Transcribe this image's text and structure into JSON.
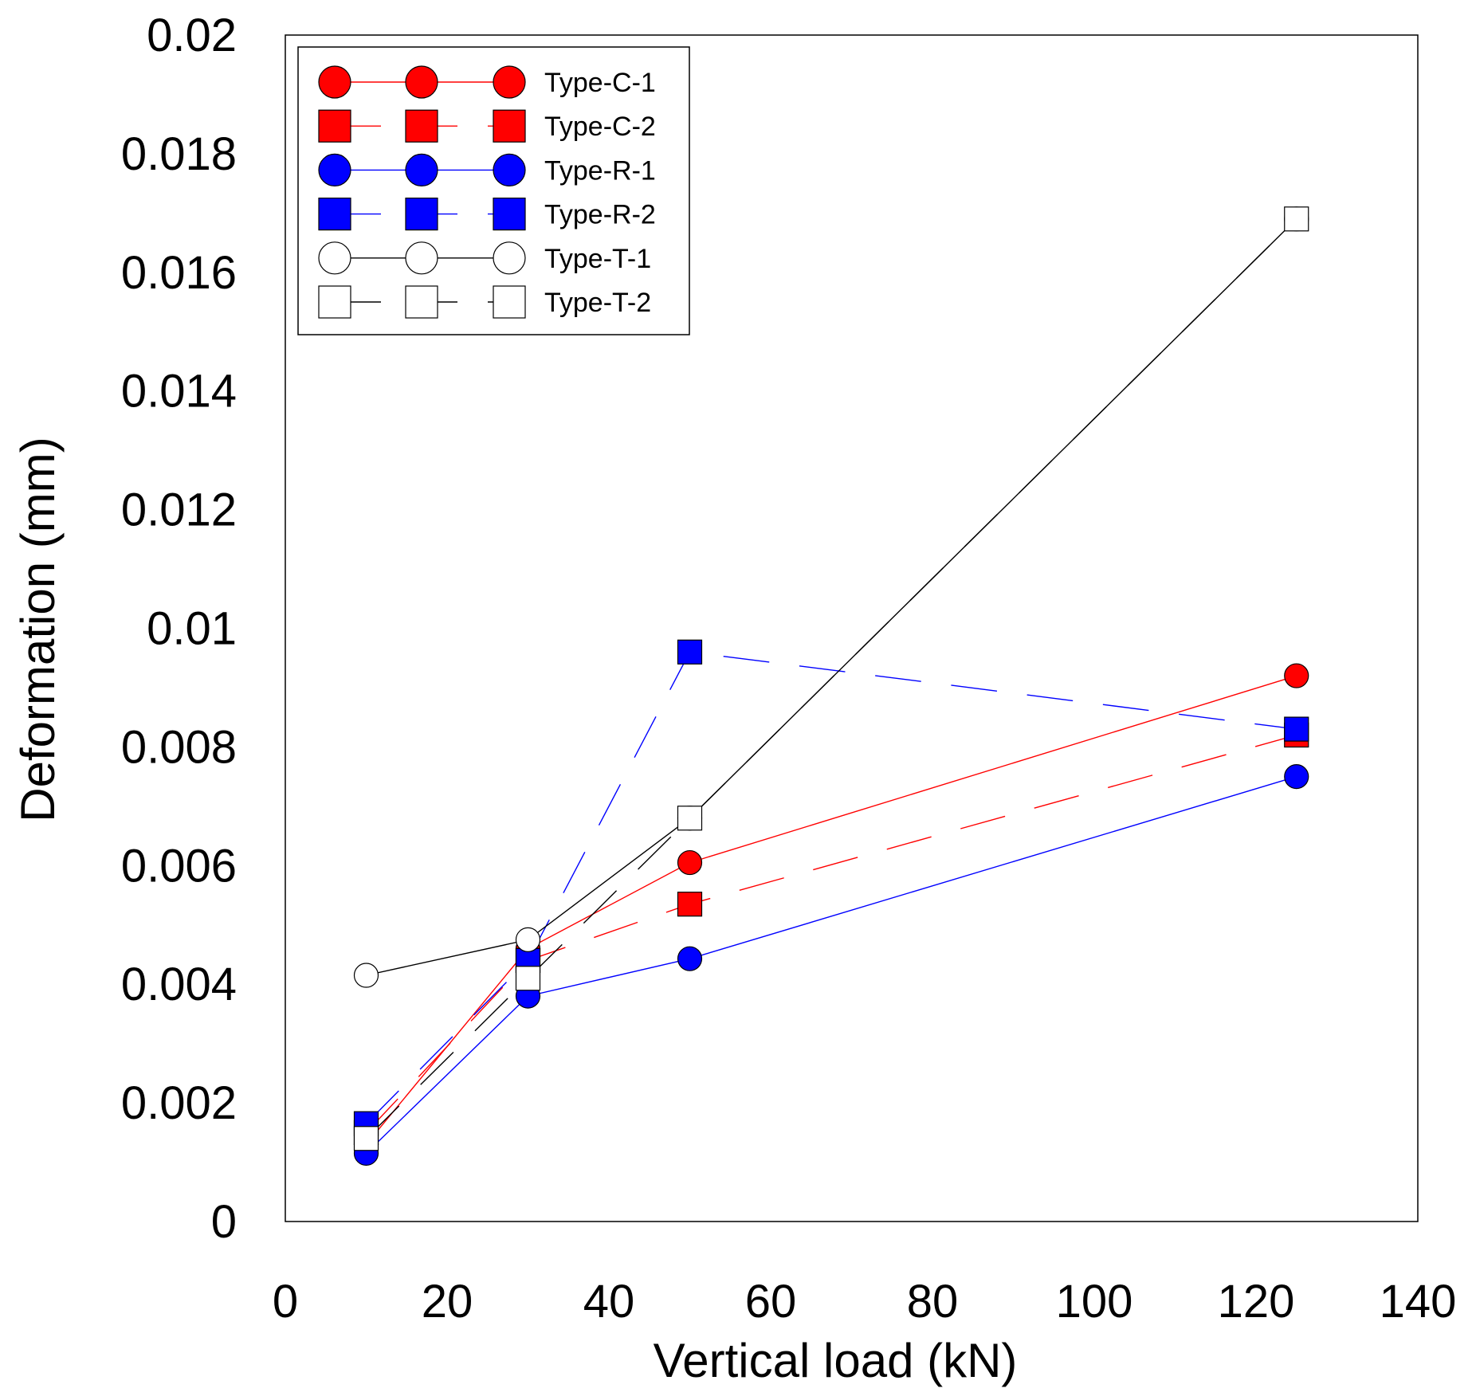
{
  "chart_data": {
    "type": "line",
    "title": "",
    "xlabel": "Vertical load (kN)",
    "ylabel": "Deformation (mm)",
    "xlim": [
      0,
      140
    ],
    "ylim": [
      0,
      0.02
    ],
    "xticks": [
      {
        "value": 0,
        "label": "0"
      },
      {
        "value": 20,
        "label": "20"
      },
      {
        "value": 40,
        "label": "40"
      },
      {
        "value": 60,
        "label": "60"
      },
      {
        "value": 80,
        "label": "80"
      },
      {
        "value": 100,
        "label": "100"
      },
      {
        "value": 120,
        "label": "120"
      },
      {
        "value": 140,
        "label": "140"
      }
    ],
    "yticks": [
      {
        "value": 0,
        "label": "0"
      },
      {
        "value": 0.002,
        "label": "0.002"
      },
      {
        "value": 0.004,
        "label": "0.004"
      },
      {
        "value": 0.006,
        "label": "0.006"
      },
      {
        "value": 0.008,
        "label": "0.008"
      },
      {
        "value": 0.01,
        "label": "0.01"
      },
      {
        "value": 0.012,
        "label": "0.012"
      },
      {
        "value": 0.014,
        "label": "0.014"
      },
      {
        "value": 0.016,
        "label": "0.016"
      },
      {
        "value": 0.018,
        "label": "0.018"
      },
      {
        "value": 0.02,
        "label": "0.02"
      }
    ],
    "grid": false,
    "legend_position": "top-left",
    "x": [
      10,
      30,
      50,
      125
    ],
    "series": [
      {
        "name": "Type-C-1",
        "values": [
          0.0013,
          0.0046,
          0.00605,
          0.0092
        ],
        "color": "#ff0000",
        "marker": "circle",
        "fill": "#ff0000",
        "dash": "solid"
      },
      {
        "name": "Type-C-2",
        "values": [
          0.0015,
          0.0044,
          0.00535,
          0.0082
        ],
        "color": "#ff0000",
        "marker": "square",
        "fill": "#ff0000",
        "dash": "dashed"
      },
      {
        "name": "Type-R-1",
        "values": [
          0.00115,
          0.0038,
          0.00443,
          0.0075
        ],
        "color": "#0000ff",
        "marker": "circle",
        "fill": "#0000ff",
        "dash": "solid"
      },
      {
        "name": "Type-R-2",
        "values": [
          0.00165,
          0.0044,
          0.0096,
          0.0083
        ],
        "color": "#0000ff",
        "marker": "square",
        "fill": "#0000ff",
        "dash": "dashed"
      },
      {
        "name": "Type-T-1",
        "values": [
          0.00415,
          0.00475,
          0.0068,
          0.0169
        ],
        "color": "#000000",
        "marker": "circle",
        "fill": "#ffffff",
        "dash": "solid"
      },
      {
        "name": "Type-T-2",
        "values": [
          0.0014,
          0.0041,
          0.0068,
          0.0169
        ],
        "color": "#000000",
        "marker": "square",
        "fill": "#ffffff",
        "dash": "dashed"
      }
    ]
  }
}
